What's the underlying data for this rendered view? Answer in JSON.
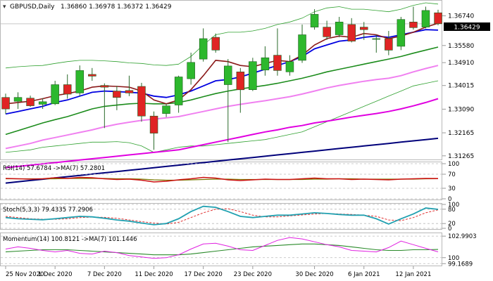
{
  "header": {
    "symbol": "GBPUSD,Daily",
    "ohlc": "1.36860 1.36978 1.36372 1.36429"
  },
  "price_panel": {
    "current_price": "1.36429",
    "y_ticks": [
      "1.36740",
      "1.35580",
      "1.34910",
      "1.34015",
      "1.33090",
      "1.32165",
      "1.31265"
    ]
  },
  "rsi_panel": {
    "label": "RSI(14) 57.6784  ->MA(7) 57.2801",
    "levels": [
      "100",
      "70",
      "30",
      "0"
    ]
  },
  "stoch_panel": {
    "label": "Stoch(5,3,3) 79.4335 77.2906",
    "levels": [
      "100",
      "80",
      "20",
      "0"
    ]
  },
  "momentum_panel": {
    "label": "Momentum(14) 100.8121  ->MA(7) 101.1446",
    "levels": [
      "102.9903",
      "100",
      "99.1689"
    ]
  },
  "x_axis": {
    "labels": [
      "25 Nov 2020",
      "1 Dec 2020",
      "7 Dec 2020",
      "11 Dec 2020",
      "17 Dec 2020",
      "23 Dec 2020",
      "30 Dec 2020",
      "6 Jan 2021",
      "12 Jan 2021"
    ]
  },
  "colors": {
    "bull": "#2db82d",
    "bear": "#e02424",
    "sma_fast": "#0000e0",
    "sma_mid": "#8b1a1a",
    "sma_green": "#1c8c1c",
    "sma_pink": "#f080f0",
    "sma_magenta": "#e000e0",
    "sma_navy": "#00007a",
    "bollinger": "#2ea02e",
    "rsi": "#cc1111",
    "rsi_ma": "#7a7a00",
    "stoch_k": "#20a0b0",
    "stoch_d": "#e03030",
    "momentum": "#e020e0",
    "momentum_ma": "#2a8a2a"
  },
  "chart_data": {
    "type": "candlestick",
    "candles": [
      {
        "o": 1.3355,
        "h": 1.337,
        "l": 1.329,
        "c": 1.331
      },
      {
        "o": 1.334,
        "h": 1.3375,
        "l": 1.331,
        "c": 1.3355
      },
      {
        "o": 1.3352,
        "h": 1.3362,
        "l": 1.3318,
        "c": 1.3322
      },
      {
        "o": 1.3328,
        "h": 1.3352,
        "l": 1.331,
        "c": 1.3338
      },
      {
        "o": 1.333,
        "h": 1.342,
        "l": 1.3325,
        "c": 1.3405
      },
      {
        "o": 1.3405,
        "h": 1.3445,
        "l": 1.335,
        "c": 1.3368
      },
      {
        "o": 1.3372,
        "h": 1.348,
        "l": 1.336,
        "c": 1.346
      },
      {
        "o": 1.3445,
        "h": 1.347,
        "l": 1.342,
        "c": 1.3438
      },
      {
        "o": 1.3402,
        "h": 1.341,
        "l": 1.3235,
        "c": 1.3395
      },
      {
        "o": 1.338,
        "h": 1.34,
        "l": 1.3305,
        "c": 1.3355
      },
      {
        "o": 1.3382,
        "h": 1.344,
        "l": 1.336,
        "c": 1.3372
      },
      {
        "o": 1.3398,
        "h": 1.3412,
        "l": 1.326,
        "c": 1.3282
      },
      {
        "o": 1.3282,
        "h": 1.33,
        "l": 1.315,
        "c": 1.3215
      },
      {
        "o": 1.3292,
        "h": 1.333,
        "l": 1.3278,
        "c": 1.3322
      },
      {
        "o": 1.3325,
        "h": 1.344,
        "l": 1.3295,
        "c": 1.3435
      },
      {
        "o": 1.3428,
        "h": 1.353,
        "l": 1.3405,
        "c": 1.3492
      },
      {
        "o": 1.3505,
        "h": 1.3625,
        "l": 1.3495,
        "c": 1.3585
      },
      {
        "o": 1.359,
        "h": 1.3605,
        "l": 1.353,
        "c": 1.354
      },
      {
        "o": 1.3405,
        "h": 1.3505,
        "l": 1.318,
        "c": 1.3478
      },
      {
        "o": 1.3455,
        "h": 1.347,
        "l": 1.3295,
        "c": 1.3385
      },
      {
        "o": 1.3385,
        "h": 1.351,
        "l": 1.338,
        "c": 1.3495
      },
      {
        "o": 1.3462,
        "h": 1.3555,
        "l": 1.344,
        "c": 1.351
      },
      {
        "o": 1.352,
        "h": 1.3625,
        "l": 1.344,
        "c": 1.346
      },
      {
        "o": 1.3455,
        "h": 1.352,
        "l": 1.344,
        "c": 1.3495
      },
      {
        "o": 1.35,
        "h": 1.364,
        "l": 1.349,
        "c": 1.36
      },
      {
        "o": 1.363,
        "h": 1.37,
        "l": 1.362,
        "c": 1.368
      },
      {
        "o": 1.363,
        "h": 1.3655,
        "l": 1.358,
        "c": 1.3592
      },
      {
        "o": 1.36,
        "h": 1.367,
        "l": 1.359,
        "c": 1.365
      },
      {
        "o": 1.364,
        "h": 1.3665,
        "l": 1.357,
        "c": 1.3575
      },
      {
        "o": 1.363,
        "h": 1.365,
        "l": 1.358,
        "c": 1.362
      },
      {
        "o": 1.3585,
        "h": 1.36,
        "l": 1.353,
        "c": 1.3585
      },
      {
        "o": 1.3585,
        "h": 1.3615,
        "l": 1.352,
        "c": 1.354
      },
      {
        "o": 1.3555,
        "h": 1.367,
        "l": 1.354,
        "c": 1.366
      },
      {
        "o": 1.365,
        "h": 1.371,
        "l": 1.362,
        "c": 1.3628
      },
      {
        "o": 1.363,
        "h": 1.371,
        "l": 1.3625,
        "c": 1.3695
      },
      {
        "o": 1.3686,
        "h": 1.3698,
        "l": 1.3637,
        "c": 1.3643
      }
    ],
    "overlays": {
      "sma_fast": [
        1.329,
        1.33,
        1.331,
        1.332,
        1.3335,
        1.3345,
        1.336,
        1.3375,
        1.338,
        1.3378,
        1.3375,
        1.3372,
        1.336,
        1.3355,
        1.3365,
        1.338,
        1.34,
        1.342,
        1.3425,
        1.3435,
        1.345,
        1.3465,
        1.348,
        1.3495,
        1.3515,
        1.3545,
        1.356,
        1.3575,
        1.358,
        1.359,
        1.3595,
        1.359,
        1.36,
        1.361,
        1.362,
        1.3618
      ],
      "sma_mid": [
        1.333,
        1.3335,
        1.334,
        1.335,
        1.3362,
        1.337,
        1.338,
        1.3395,
        1.34,
        1.3398,
        1.3395,
        1.338,
        1.3345,
        1.333,
        1.3345,
        1.3385,
        1.344,
        1.35,
        1.3495,
        1.348,
        1.3475,
        1.3488,
        1.35,
        1.3495,
        1.352,
        1.356,
        1.3585,
        1.3595,
        1.359,
        1.3605,
        1.36,
        1.3585,
        1.3595,
        1.361,
        1.363,
        1.3645
      ],
      "sma_green": [
        1.321,
        1.3225,
        1.324,
        1.3255,
        1.3268,
        1.328,
        1.3295,
        1.331,
        1.332,
        1.3325,
        1.333,
        1.3332,
        1.333,
        1.333,
        1.3335,
        1.3345,
        1.3358,
        1.337,
        1.338,
        1.3388,
        1.3395,
        1.3402,
        1.341,
        1.342,
        1.343,
        1.3442,
        1.3455,
        1.3465,
        1.3475,
        1.3485,
        1.3495,
        1.3505,
        1.3515,
        1.3528,
        1.354,
        1.3552
      ],
      "sma_pink": [
        1.3155,
        1.3165,
        1.3175,
        1.3188,
        1.3198,
        1.3208,
        1.3218,
        1.3228,
        1.324,
        1.325,
        1.3258,
        1.3265,
        1.327,
        1.3275,
        1.328,
        1.329,
        1.33,
        1.331,
        1.332,
        1.3328,
        1.3335,
        1.3342,
        1.335,
        1.3358,
        1.3368,
        1.338,
        1.3392,
        1.3402,
        1.341,
        1.3418,
        1.3425,
        1.343,
        1.344,
        1.3455,
        1.3468,
        1.348
      ],
      "sma_magenta": [
        1.308,
        1.3085,
        1.309,
        1.3095,
        1.31,
        1.3105,
        1.311,
        1.3115,
        1.312,
        1.3125,
        1.313,
        1.3135,
        1.314,
        1.3145,
        1.315,
        1.316,
        1.317,
        1.318,
        1.319,
        1.32,
        1.321,
        1.322,
        1.3228,
        1.3238,
        1.3245,
        1.3255,
        1.3262,
        1.327,
        1.3278,
        1.3285,
        1.3292,
        1.33,
        1.331,
        1.3322,
        1.3335,
        1.335
      ],
      "sma_navy": [
        1.302,
        1.3025,
        1.303,
        1.3035,
        1.304,
        1.3045,
        1.305,
        1.3055,
        1.306,
        1.3065,
        1.307,
        1.3075,
        1.308,
        1.3085,
        1.309,
        1.3095,
        1.31,
        1.3105,
        1.311,
        1.3115,
        1.312,
        1.3125,
        1.313,
        1.3135,
        1.314,
        1.3145,
        1.315,
        1.3155,
        1.316,
        1.3165,
        1.317,
        1.3175,
        1.318,
        1.3185,
        1.319,
        1.3195
      ],
      "bb_upper": [
        1.347,
        1.3475,
        1.3478,
        1.348,
        1.3488,
        1.3495,
        1.35,
        1.35,
        1.3498,
        1.3495,
        1.349,
        1.3488,
        1.3482,
        1.348,
        1.3485,
        1.3515,
        1.356,
        1.36,
        1.361,
        1.361,
        1.3615,
        1.3625,
        1.364,
        1.365,
        1.3665,
        1.369,
        1.3705,
        1.371,
        1.37,
        1.37,
        1.3695,
        1.369,
        1.37,
        1.3715,
        1.3725,
        1.372
      ],
      "bb_lower": [
        1.314,
        1.3145,
        1.315,
        1.316,
        1.3165,
        1.317,
        1.3175,
        1.318,
        1.318,
        1.3182,
        1.3178,
        1.3165,
        1.314,
        1.315,
        1.316,
        1.3165,
        1.3165,
        1.317,
        1.3175,
        1.318,
        1.3185,
        1.319,
        1.32,
        1.321,
        1.322,
        1.324,
        1.326,
        1.328,
        1.33,
        1.332,
        1.334,
        1.336,
        1.338,
        1.34,
        1.341,
        1.342
      ]
    },
    "rsi": [
      58,
      57,
      56,
      57,
      60,
      58,
      61,
      60,
      57,
      55,
      56,
      53,
      48,
      50,
      54,
      57,
      61,
      59,
      54,
      52,
      54,
      56,
      55,
      55,
      57,
      59,
      57,
      57,
      55,
      56,
      55,
      54,
      56,
      57,
      58,
      57.68
    ],
    "rsi_ma": [
      57,
      57,
      57,
      57,
      57,
      58,
      58,
      58,
      58,
      57,
      57,
      56,
      54,
      53,
      53,
      54,
      55,
      56,
      56,
      55,
      55,
      55,
      55,
      55,
      55,
      56,
      56,
      57,
      57,
      56,
      56,
      56,
      56,
      56,
      57,
      57.28
    ],
    "stoch_k": [
      45,
      40,
      38,
      36,
      40,
      45,
      50,
      48,
      42,
      35,
      30,
      22,
      15,
      20,
      40,
      70,
      92,
      88,
      70,
      50,
      45,
      50,
      55,
      55,
      60,
      65,
      62,
      58,
      55,
      55,
      40,
      18,
      40,
      60,
      85,
      79.43
    ],
    "stoch_d": [
      50,
      45,
      40,
      38,
      38,
      40,
      45,
      47,
      46,
      42,
      35,
      28,
      22,
      18,
      25,
      45,
      65,
      80,
      82,
      70,
      55,
      48,
      48,
      52,
      56,
      60,
      62,
      60,
      58,
      55,
      50,
      35,
      32,
      45,
      65,
      77.29
    ],
    "momentum": [
      101.2,
      101.5,
      101.3,
      101.0,
      100.8,
      101.0,
      100.6,
      100.5,
      100.9,
      100.7,
      100.3,
      100.1,
      99.9,
      100.0,
      100.4,
      101.2,
      101.9,
      102.0,
      101.6,
      101.1,
      101.0,
      101.7,
      102.4,
      102.8,
      102.6,
      102.2,
      101.8,
      101.5,
      101.0,
      100.9,
      100.8,
      101.4,
      102.3,
      101.8,
      101.3,
      100.81
    ],
    "momentum_ma": [
      100.8,
      100.9,
      101.0,
      101.1,
      101.1,
      101.1,
      101.0,
      100.9,
      100.8,
      100.7,
      100.6,
      100.5,
      100.4,
      100.4,
      100.4,
      100.5,
      100.7,
      100.9,
      101.1,
      101.3,
      101.5,
      101.6,
      101.7,
      101.8,
      101.9,
      101.9,
      101.8,
      101.7,
      101.5,
      101.3,
      101.1,
      101.0,
      101.0,
      101.1,
      101.1,
      101.14
    ],
    "price_axis_range": [
      1.3115,
      1.3725
    ],
    "rsi_axis_range": [
      0,
      100
    ],
    "stoch_axis_range": [
      0,
      100
    ],
    "momentum_axis_range": [
      99.0,
      103.2
    ]
  }
}
